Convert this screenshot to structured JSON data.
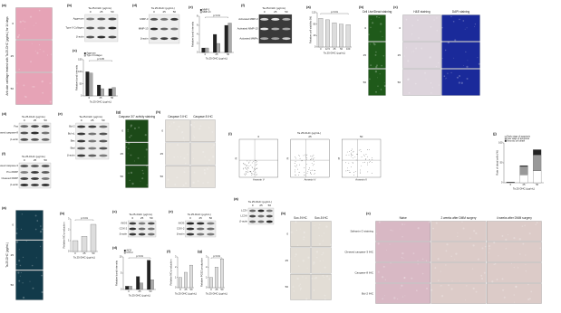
{
  "figure": {
    "panels": [
      {
        "label": "(a)",
        "kind": "image",
        "side": "Articular cartilage treated with Ta.25-DHC (μg/mL) for 14 days",
        "rows": [
          "0",
          "25",
          "50"
        ],
        "colors": [
          "#e6a3b6"
        ]
      },
      {
        "label": "(b)",
        "kind": "blot",
        "header": "Ta.25-DHC (μg/mL)",
        "lanes": [
          "0",
          "25",
          "50"
        ],
        "bands": [
          "Aggrecan",
          "Type II Collagen",
          "β-actin"
        ],
        "background": "#eeeeee"
      },
      {
        "label": "(c)",
        "kind": "bar",
        "ylabel": "Relative band intensity",
        "xlabel": "Ta.25-DHC (μg/mL)",
        "categories": [
          "0",
          "25",
          "50"
        ],
        "series": [
          {
            "name": "Aggrecan",
            "color": "#222222",
            "values": [
              100,
              45,
              30
            ]
          },
          {
            "name": "Type II Collagen",
            "color": "#aaaaaa",
            "values": [
              95,
              30,
              35
            ]
          }
        ],
        "ylim": [
          0,
          150
        ],
        "yticks": [
          0,
          50,
          100,
          150
        ],
        "annotation": "p<0.05"
      },
      {
        "label": "(d)",
        "kind": "blot",
        "header": "Ta.25-DHC (μg/mL)",
        "lanes": [
          "0",
          "25",
          "50"
        ],
        "bands": [
          "MMP-3",
          "MMP-13",
          "β-actin"
        ],
        "background": "#eeeeee"
      },
      {
        "label": "(e)",
        "kind": "bar",
        "ylabel": "Relative band intensity",
        "xlabel": "Ta.25-DHC (μg/mL)",
        "categories": [
          "0",
          "25",
          "50"
        ],
        "series": [
          {
            "name": "MMP-3",
            "color": "#222222",
            "values": [
              1,
              4,
              6
            ]
          },
          {
            "name": "MMP-13",
            "color": "#aaaaaa",
            "values": [
              1,
              2,
              6.5
            ]
          }
        ],
        "ylim": [
          0,
          8
        ],
        "yticks": [
          0,
          2,
          4,
          6,
          8
        ],
        "annotation": "p<0.01"
      },
      {
        "label": "(f)",
        "kind": "blot",
        "header": "Ta.25-DHC (μg/mL)",
        "lanes": [
          "0",
          "25",
          "50"
        ],
        "bands": [
          "Activated MMP-3",
          "Activated MMP-13",
          "Activated MMPs"
        ],
        "background": "#3a3a3a"
      },
      {
        "label": "(a)",
        "kind": "bar",
        "ylabel": "Relative cell viability (%)",
        "xlabel": "Ta.25-DHC (μg/mL)",
        "categories": [
          "0",
          "12.5",
          "25",
          "50",
          "100"
        ],
        "series": [
          {
            "color": "#dddddd",
            "values": [
              100,
              95,
              85,
              80,
              78
            ]
          }
        ],
        "ylim": [
          0,
          120
        ],
        "yticks": [
          0,
          40,
          80,
          120
        ],
        "annotation": "p<0.01"
      },
      {
        "label": "(b)",
        "kind": "image",
        "titles": [
          "Cell Live/Dead staining"
        ],
        "rows": [
          "0",
          "25",
          "50"
        ],
        "colors": [
          "#1f5a1a"
        ]
      },
      {
        "label": "(c)",
        "kind": "image",
        "titles": [
          "H&E staining",
          "DAPI staining"
        ],
        "rows": [
          "0",
          "25",
          "50"
        ],
        "colors": [
          "#ddd4dc",
          "#1a2a9a"
        ]
      },
      {
        "label": "(d)",
        "kind": "blot",
        "header": "Ta.25-DHC (μg/mL)",
        "lanes": [
          "0",
          "25",
          "50"
        ],
        "bands": [
          "Fas",
          "Cleaved caspase-8",
          "β-actin"
        ],
        "background": "#eeeeee"
      },
      {
        "label": "(e)",
        "kind": "blot",
        "header": "Ta.25-DHC (μg/mL)",
        "lanes": [
          "0",
          "25",
          "50"
        ],
        "bands": [
          "Bcl-2",
          "Bcl-xL",
          "Bax",
          "Bad",
          "β-actin"
        ],
        "background": "#eeeeee"
      },
      {
        "label": "(f)",
        "kind": "blot",
        "header": "Ta.25-DHC (μg/mL)",
        "lanes": [
          "0",
          "25",
          "50"
        ],
        "bands": [
          "Cleaved caspase-3",
          "Pro-PARP",
          "Cleaved PARP",
          "β-actin"
        ],
        "background": "#eeeeee"
      },
      {
        "label": "(g)",
        "kind": "image",
        "titles": [
          "Caspase 3/7 activity staining"
        ],
        "rows": [
          "0",
          "25",
          "50"
        ],
        "colors": [
          "#1c4a18"
        ]
      },
      {
        "label": "(h)",
        "kind": "image",
        "titles": [
          "Caspase 3 IHC",
          "Caspase 8 IHC"
        ],
        "rows": [
          "0",
          "25",
          "50"
        ],
        "colors": [
          "#e6e2dc",
          "#e6e2dc"
        ]
      },
      {
        "label": "(i)",
        "kind": "flow",
        "header": "Ta.25-DHC (μg/mL)",
        "plots": [
          "0",
          "25",
          "50"
        ],
        "xlabel": "Annexin V",
        "ylabel": "PI"
      },
      {
        "label": "(j)",
        "kind": "bar",
        "stacked": true,
        "ylabel": "Rate of dead cells (%)",
        "xlabel": "Ta.25-DHC (μg/mL)",
        "categories": [
          "0",
          "25",
          "50"
        ],
        "series": [
          {
            "name": "Early stage of apoptosis",
            "color": "#ffffff",
            "values": [
              1,
              20,
              30
            ]
          },
          {
            "name": "Late stage of apoptosis",
            "color": "#999999",
            "values": [
              0.5,
              21,
              40
            ]
          },
          {
            "name": "Necrotic cell death",
            "color": "#222222",
            "values": [
              0.3,
              2,
              13
            ]
          }
        ],
        "ylim": [
          0,
          100
        ],
        "yticks": [
          0,
          50,
          100
        ]
      },
      {
        "label": "(a)",
        "kind": "image",
        "side": "Ta.25-DHC (μg/mL)",
        "rows": [
          "0",
          "25",
          "50"
        ],
        "colors": [
          "#123a4a"
        ]
      },
      {
        "label": "(b)",
        "kind": "bar",
        "ylabel": "Relative NO production",
        "xlabel": "Ta.25-DHC (μg/mL)",
        "categories": [
          "0",
          "25",
          "50"
        ],
        "series": [
          {
            "color": "#dddddd",
            "values": [
              1,
              1.4,
              2.5
            ]
          }
        ],
        "ylim": [
          0,
          3
        ],
        "yticks": [
          0,
          1,
          2,
          3
        ],
        "annotation": "p<0.01"
      },
      {
        "label": "(c)",
        "kind": "blot",
        "header": "Ta.25-DHC (μg/mL)",
        "lanes": [
          "0",
          "25",
          "50"
        ],
        "bands": [
          "iNOS",
          "COX-2",
          "β-actin"
        ],
        "background": "#eeeeee"
      },
      {
        "label": "(d)",
        "kind": "bar",
        "ylabel": "Relative band intensity",
        "xlabel": "Ta.25-DHC (μg/mL)",
        "categories": [
          "0",
          "25",
          "50"
        ],
        "series": [
          {
            "name": "iNOS",
            "color": "#222222",
            "values": [
              1,
              4,
              9
            ]
          },
          {
            "name": "COX-2",
            "color": "#aaaaaa",
            "values": [
              1,
              2,
              3
            ]
          }
        ],
        "ylim": [
          0,
          10
        ],
        "yticks": [
          0,
          5,
          10
        ],
        "annotation": "p<0.01"
      },
      {
        "label": "(e)",
        "kind": "blot",
        "header": "Ta.25-DHC (μg/mL)",
        "lanes": [
          "0",
          "25",
          "50"
        ],
        "bands": [
          "iNOS",
          "COX-2",
          "β-actin"
        ],
        "background": "#eeeeee"
      },
      {
        "label": "(f)",
        "kind": "bar",
        "ylabel": "Relative NO production",
        "xlabel": "Ta.25-DHC (μg/mL)",
        "categories": [
          "0",
          "25",
          "50"
        ],
        "series": [
          {
            "color": "#dddddd",
            "values": [
              1,
              1.5,
              2.2
            ]
          }
        ],
        "ylim": [
          0,
          3
        ],
        "yticks": [
          0,
          1,
          2,
          3
        ]
      },
      {
        "label": "(g)",
        "kind": "bar",
        "ylabel": "Relative PGE2 production",
        "xlabel": "Ta.25-DHC (μg/mL)",
        "categories": [
          "0",
          "25",
          "50"
        ],
        "series": [
          {
            "color": "#dddddd",
            "values": [
              1,
              2,
              2.8
            ]
          }
        ],
        "ylim": [
          0,
          3
        ],
        "yticks": [
          0,
          1,
          2,
          3
        ],
        "annotation": "p<0.01"
      },
      {
        "label": "(a)",
        "kind": "blot",
        "header": "Ta.25-DHC (μg/mL)",
        "lanes": [
          "0",
          "25",
          "50"
        ],
        "bands": [
          "LC3-I",
          "LC3-II",
          "β-actin"
        ],
        "background": "#eeeeee"
      },
      {
        "label": "(b)",
        "kind": "image",
        "titles": [
          "Sox-9 IHC",
          "Sox-5 IHC"
        ],
        "rows": [
          "0",
          "25",
          "50"
        ],
        "colors": [
          "#e2ddd5",
          "#e2ddd5"
        ]
      },
      {
        "label": "(c)",
        "kind": "image",
        "titles": [
          "Naive",
          "2 weeks after DMM surgery",
          "4 weeks after DMM surgery"
        ],
        "rows": [
          "Safranin O staining",
          "Cleaved caspase-3 IHC",
          "Caspase-8 IHC",
          "Bcl-2 IHC"
        ],
        "colors": [
          "#d8b8c4",
          "#dccbc8",
          "#dccbc8"
        ]
      }
    ]
  }
}
